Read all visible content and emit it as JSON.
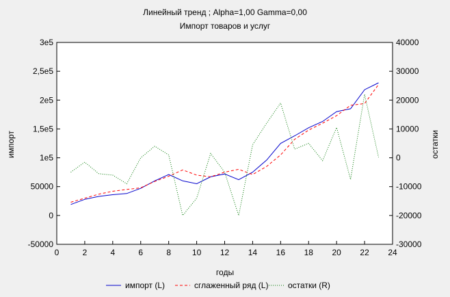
{
  "chart_data": {
    "type": "line",
    "title": "Линейный тренд ; Alpha=1,00 Gamma=0,00",
    "subtitle": "Импорт товаров и услуг",
    "xlabel": "годы",
    "ylabel_left": "импорт",
    "ylabel_right": "остатки",
    "xlim": [
      0,
      24
    ],
    "ylim_left": [
      -50000,
      300000
    ],
    "ylim_right": [
      -30000,
      40000
    ],
    "grid": false,
    "legend_position": "bottom",
    "x_ticks": [
      0,
      2,
      4,
      6,
      8,
      10,
      12,
      14,
      16,
      18,
      20,
      22,
      24
    ],
    "x_tick_labels": [
      "0",
      "2",
      "4",
      "6",
      "8",
      "10",
      "12",
      "14",
      "16",
      "18",
      "20",
      "22",
      "24"
    ],
    "y_left_ticks": [
      -50000,
      0,
      50000,
      100000,
      150000,
      200000,
      250000,
      300000
    ],
    "y_left_tick_labels": [
      "-50000",
      "0",
      "50000",
      "1e5",
      "1,5e5",
      "2e5",
      "2,5e5",
      "3e5"
    ],
    "y_right_ticks": [
      -30000,
      -20000,
      -10000,
      0,
      10000,
      20000,
      30000,
      40000
    ],
    "y_right_tick_labels": [
      "-30000",
      "-20000",
      "-10000",
      "0",
      "10000",
      "20000",
      "30000",
      "40000"
    ],
    "x": [
      1,
      2,
      3,
      4,
      5,
      6,
      7,
      8,
      9,
      10,
      11,
      12,
      13,
      14,
      15,
      16,
      17,
      18,
      19,
      20,
      21,
      22,
      23
    ],
    "series": [
      {
        "name": "импорт (L)",
        "axis": "left",
        "color": "#0000cc",
        "dash": "solid",
        "values": [
          19000,
          28000,
          33000,
          36000,
          38000,
          47000,
          60000,
          71000,
          60000,
          55000,
          67000,
          72000,
          62000,
          75000,
          96000,
          125000,
          138000,
          152000,
          163000,
          180000,
          185000,
          218000,
          230000
        ]
      },
      {
        "name": "сглаженный ряд (L)",
        "axis": "left",
        "color": "#ff0000",
        "dash": "dashed",
        "values": [
          23000,
          30000,
          37000,
          42000,
          45000,
          48000,
          59000,
          68000,
          79000,
          70000,
          67000,
          75000,
          80000,
          71000,
          85000,
          105000,
          132000,
          148000,
          160000,
          173000,
          191000,
          194000,
          227000
        ]
      },
      {
        "name": "остатки (R)",
        "axis": "right",
        "color": "#007700",
        "dash": "dotted",
        "values": [
          -5000,
          -1500,
          -5500,
          -6000,
          -9000,
          0,
          4000,
          1000,
          -20000,
          -14000,
          1500,
          -5000,
          -20000,
          4500,
          12000,
          19000,
          3000,
          5000,
          -1000,
          10500,
          -7500,
          22000,
          200
        ]
      }
    ]
  }
}
